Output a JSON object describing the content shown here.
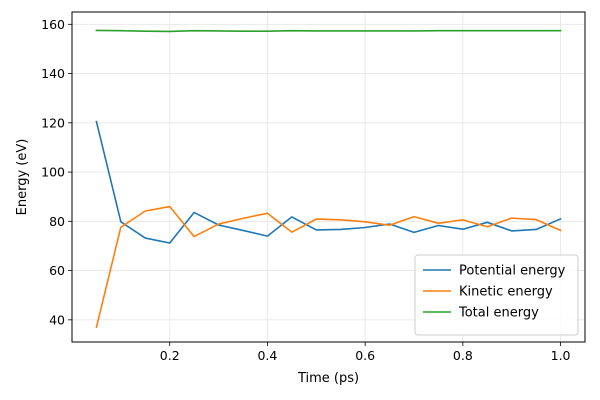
{
  "chart_data": {
    "type": "line",
    "title": "",
    "xlabel": "Time (ps)",
    "ylabel": "Energy (eV)",
    "xlim": [
      0.0,
      1.05
    ],
    "ylim": [
      31,
      165
    ],
    "xticks": [
      0.2,
      0.4,
      0.6,
      0.8,
      1.0
    ],
    "xtick_labels": [
      "0.2",
      "0.4",
      "0.6",
      "0.8",
      "1.0"
    ],
    "yticks": [
      40,
      60,
      80,
      100,
      120,
      140,
      160
    ],
    "ytick_labels": [
      "40",
      "60",
      "80",
      "100",
      "120",
      "140",
      "160"
    ],
    "grid": true,
    "legend_position": "bottom-right",
    "x": [
      0.05,
      0.1,
      0.15,
      0.2,
      0.25,
      0.3,
      0.35,
      0.4,
      0.45,
      0.5,
      0.55,
      0.6,
      0.65,
      0.7,
      0.75,
      0.8,
      0.85,
      0.9,
      0.95,
      1.0
    ],
    "series": [
      {
        "name": "Potential energy",
        "color": "#1f77b4",
        "values": [
          120.5,
          79.8,
          73.2,
          71.2,
          83.6,
          78.5,
          76.3,
          74.0,
          81.8,
          76.5,
          76.7,
          77.5,
          78.9,
          75.5,
          78.3,
          76.8,
          79.6,
          76.1,
          76.7,
          81.0
        ]
      },
      {
        "name": "Kinetic energy",
        "color": "#ff7f0e",
        "values": [
          37.0,
          77.6,
          84.2,
          86.0,
          73.8,
          78.9,
          81.2,
          83.3,
          75.6,
          80.9,
          80.6,
          79.8,
          78.4,
          81.9,
          79.2,
          80.6,
          77.8,
          81.3,
          80.7,
          76.3
        ]
      },
      {
        "name": "Total energy",
        "color": "#2ca02c",
        "values": [
          157.5,
          157.4,
          157.2,
          157.1,
          157.4,
          157.3,
          157.2,
          157.2,
          157.4,
          157.3,
          157.3,
          157.3,
          157.3,
          157.3,
          157.4,
          157.4,
          157.4,
          157.4,
          157.4,
          157.4
        ]
      }
    ]
  }
}
